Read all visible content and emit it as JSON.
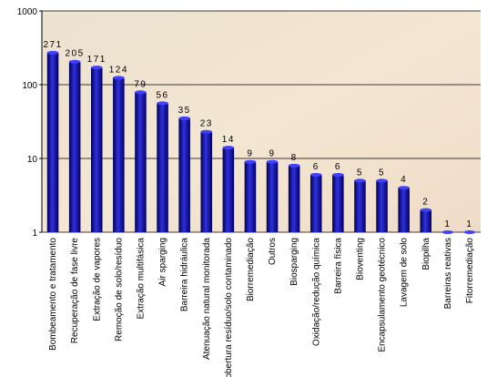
{
  "chart_data": {
    "type": "bar",
    "categories": [
      "Bombeamento e tratamento",
      "Recuperação de fase livre",
      "Extração de vapores",
      "Remoção de solo/resíduo",
      "Extração multifásica",
      "Air sparging",
      "Barreira hidráulica",
      "Atenuação natural monitorada",
      "Cobertura resíduo/solo contaminado",
      "Biorremediação",
      "Outros",
      "Biosparging",
      "Oxidação/redução química",
      "Barreira física",
      "Bioventing",
      "Encapsulamento geotécnico",
      "Lavagem de solo",
      "Biopilha",
      "Barreiras reativas",
      "Fitorremediação"
    ],
    "values": [
      271,
      205,
      171,
      124,
      79,
      56,
      35,
      23,
      14,
      9,
      9,
      8,
      6,
      6,
      5,
      5,
      4,
      2,
      1,
      1
    ],
    "color": "#1a1aa0",
    "ylim": [
      1,
      1000
    ],
    "yticks": [
      1,
      10,
      100,
      1000
    ],
    "log_scale": true,
    "grid": true
  }
}
